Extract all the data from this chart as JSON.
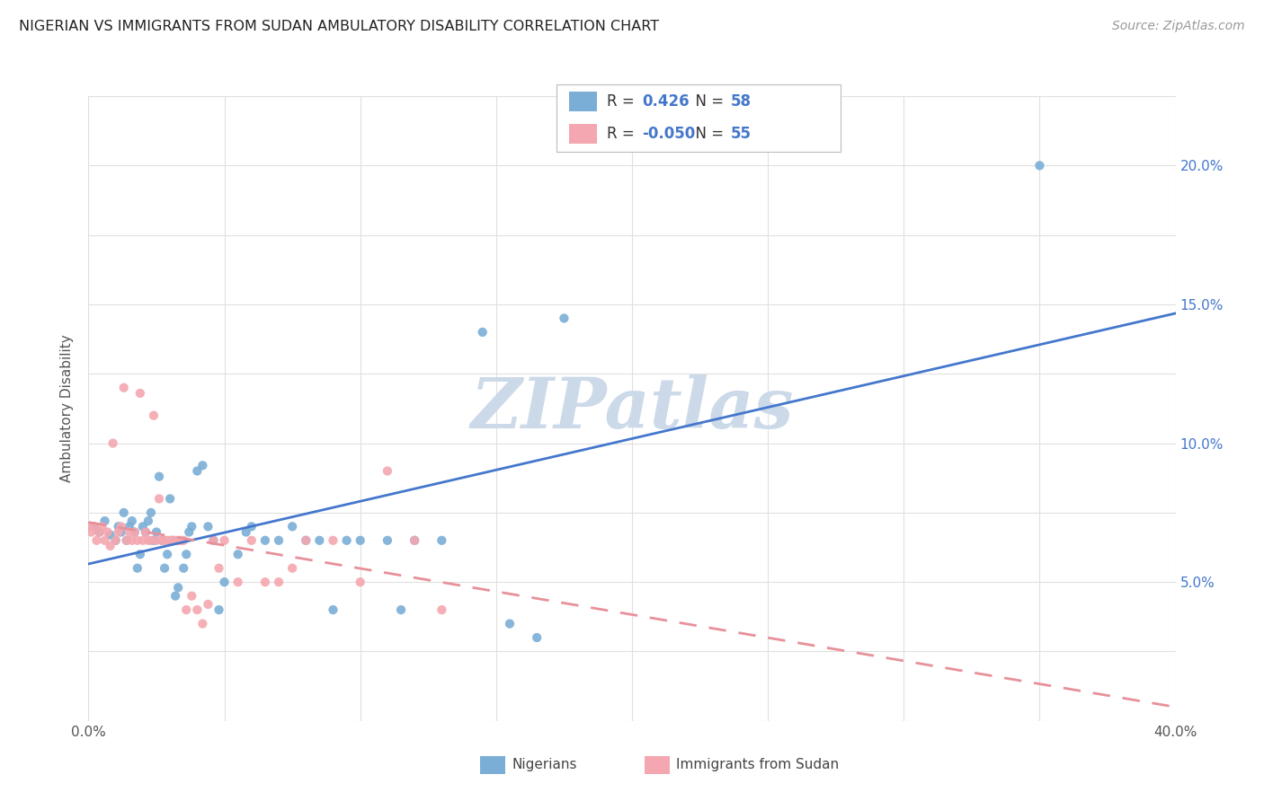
{
  "title": "NIGERIAN VS IMMIGRANTS FROM SUDAN AMBULATORY DISABILITY CORRELATION CHART",
  "source": "Source: ZipAtlas.com",
  "ylabel_label": "Ambulatory Disability",
  "x_min": 0.0,
  "x_max": 0.4,
  "y_min": 0.0,
  "y_max": 0.225,
  "r_nigerian": 0.426,
  "n_nigerian": 58,
  "r_sudan": -0.05,
  "n_sudan": 55,
  "blue_color": "#7aaed6",
  "pink_color": "#f4a7b0",
  "trend_blue": "#4477cc",
  "trend_pink": "#e8909a",
  "watermark_color": "#ccd9e8",
  "background_color": "#ffffff",
  "grid_color": "#e0e0e0",
  "nigerian_x": [
    0.002,
    0.004,
    0.006,
    0.008,
    0.01,
    0.011,
    0.012,
    0.013,
    0.014,
    0.015,
    0.016,
    0.017,
    0.018,
    0.019,
    0.02,
    0.021,
    0.022,
    0.023,
    0.024,
    0.025,
    0.026,
    0.027,
    0.028,
    0.029,
    0.03,
    0.031,
    0.032,
    0.033,
    0.035,
    0.036,
    0.037,
    0.038,
    0.04,
    0.042,
    0.044,
    0.046,
    0.048,
    0.05,
    0.055,
    0.058,
    0.06,
    0.065,
    0.07,
    0.075,
    0.08,
    0.085,
    0.09,
    0.095,
    0.1,
    0.11,
    0.115,
    0.12,
    0.13,
    0.145,
    0.155,
    0.165,
    0.175,
    0.35
  ],
  "nigerian_y": [
    0.07,
    0.068,
    0.072,
    0.067,
    0.065,
    0.07,
    0.068,
    0.075,
    0.065,
    0.07,
    0.072,
    0.068,
    0.055,
    0.06,
    0.07,
    0.068,
    0.072,
    0.075,
    0.065,
    0.068,
    0.088,
    0.065,
    0.055,
    0.06,
    0.08,
    0.065,
    0.045,
    0.048,
    0.055,
    0.06,
    0.068,
    0.07,
    0.09,
    0.092,
    0.07,
    0.065,
    0.04,
    0.05,
    0.06,
    0.068,
    0.07,
    0.065,
    0.065,
    0.07,
    0.065,
    0.065,
    0.04,
    0.065,
    0.065,
    0.065,
    0.04,
    0.065,
    0.065,
    0.14,
    0.035,
    0.03,
    0.145,
    0.2
  ],
  "sudan_x": [
    0.0,
    0.001,
    0.002,
    0.003,
    0.004,
    0.005,
    0.006,
    0.007,
    0.008,
    0.009,
    0.01,
    0.011,
    0.012,
    0.013,
    0.014,
    0.015,
    0.016,
    0.017,
    0.018,
    0.019,
    0.02,
    0.021,
    0.022,
    0.023,
    0.024,
    0.025,
    0.026,
    0.027,
    0.028,
    0.029,
    0.03,
    0.031,
    0.032,
    0.033,
    0.034,
    0.035,
    0.036,
    0.038,
    0.04,
    0.042,
    0.044,
    0.046,
    0.048,
    0.05,
    0.055,
    0.06,
    0.065,
    0.07,
    0.075,
    0.08,
    0.09,
    0.1,
    0.11,
    0.12,
    0.13
  ],
  "sudan_y": [
    0.07,
    0.068,
    0.07,
    0.065,
    0.068,
    0.07,
    0.065,
    0.068,
    0.063,
    0.1,
    0.065,
    0.068,
    0.07,
    0.12,
    0.065,
    0.068,
    0.065,
    0.068,
    0.065,
    0.118,
    0.065,
    0.068,
    0.065,
    0.065,
    0.11,
    0.065,
    0.08,
    0.065,
    0.065,
    0.065,
    0.065,
    0.065,
    0.065,
    0.065,
    0.065,
    0.065,
    0.04,
    0.045,
    0.04,
    0.035,
    0.042,
    0.065,
    0.055,
    0.065,
    0.05,
    0.065,
    0.05,
    0.05,
    0.055,
    0.065,
    0.065,
    0.05,
    0.09,
    0.065,
    0.04
  ]
}
